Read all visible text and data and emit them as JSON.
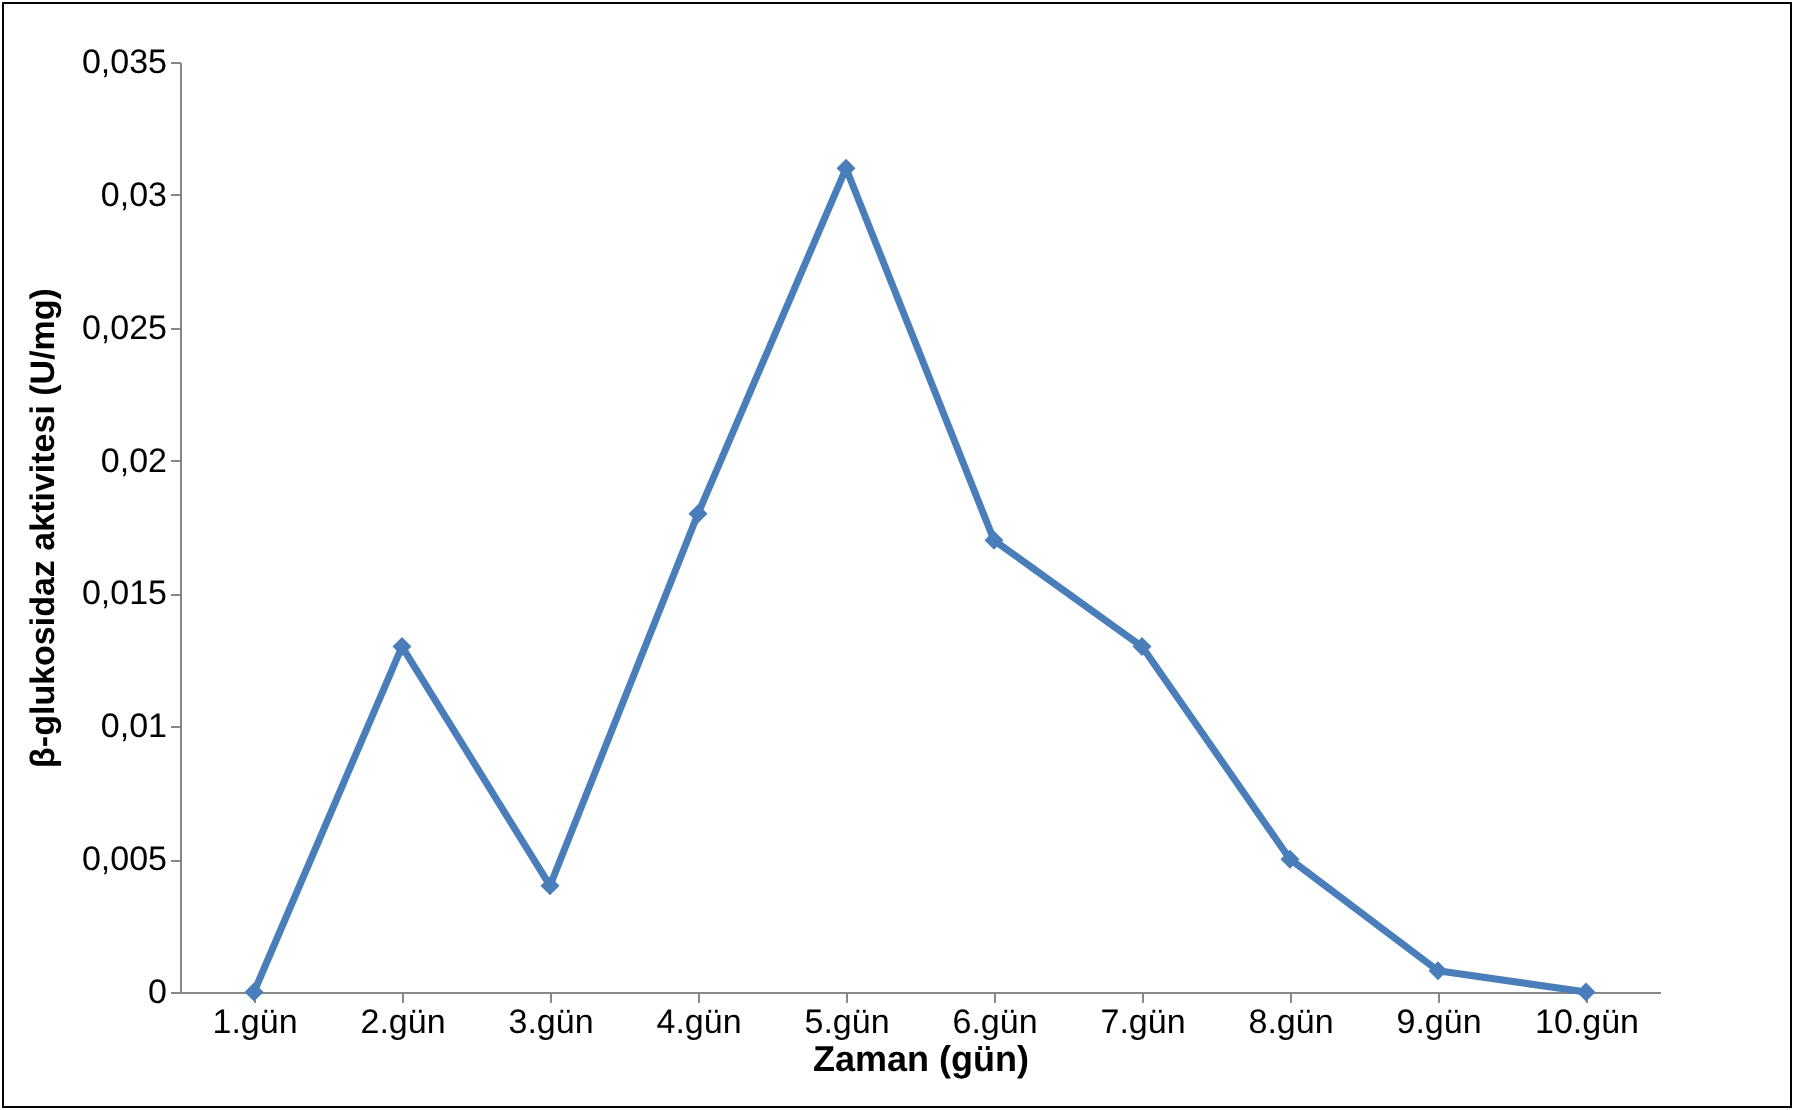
{
  "chart_data": {
    "type": "line",
    "xlabel": "Zaman (gün)",
    "ylabel": "β-glukosidaz aktivitesi (U/mg)",
    "categories": [
      "1.gün",
      "2.gün",
      "3.gün",
      "4.gün",
      "5.gün",
      "6.gün",
      "7.gün",
      "8.gün",
      "9.gün",
      "10.gün"
    ],
    "series": [
      {
        "color": "#4a7ebb",
        "values": [
          0,
          0.013,
          0.004,
          0.018,
          0.031,
          0.017,
          0.013,
          0.005,
          0.0008,
          0
        ]
      }
    ],
    "ylim": [
      0,
      0.035
    ],
    "yticks": [
      {
        "value": 0,
        "label": "0"
      },
      {
        "value": 0.005,
        "label": "0,005"
      },
      {
        "value": 0.01,
        "label": "0,01"
      },
      {
        "value": 0.015,
        "label": "0,015"
      },
      {
        "value": 0.02,
        "label": "0,02"
      },
      {
        "value": 0.025,
        "label": "0,025"
      },
      {
        "value": 0.03,
        "label": "0,03"
      },
      {
        "value": 0.035,
        "label": "0,035"
      }
    ],
    "grid": false,
    "legend": false,
    "marker": "diamond",
    "line_style": "solid"
  }
}
